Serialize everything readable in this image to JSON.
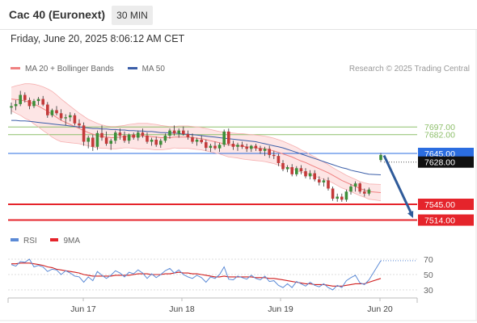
{
  "header": {
    "title": "Cac 40 (Euronext)",
    "timeframe": "30 MIN"
  },
  "subtitle": "Friday, June 20, 2025 8:06:12 AM CET",
  "credit": "Research © 2025 Trading Central",
  "colors": {
    "candle_up": "#3d8f3a",
    "candle_down": "#c43a3a",
    "ma50": "#3b5ea8",
    "bollinger": "#f08080",
    "bollinger_fill": "#fde2e2",
    "resistance_green": "#8dbf6a",
    "support_red": "#e5242b",
    "pivot_blue": "#2b6de0",
    "arrow": "#2f5b9a",
    "rsi": "#5b8ad6",
    "rsi_ma": "#d11f1f"
  },
  "legend_main": [
    {
      "label": "MA 20 + Bollinger Bands",
      "color": "#f08080"
    },
    {
      "label": "MA 50",
      "color": "#3b5ea8"
    }
  ],
  "legend_rsi": [
    {
      "label": "RSI",
      "color": "#5b8ad6"
    },
    {
      "label": "9MA",
      "color": "#e5242b"
    }
  ],
  "chart_data": [
    {
      "type": "candlestick",
      "title": "Cac 40 (Euronext)",
      "x_tick_labels": [
        "Jun 17",
        "Jun 18",
        "Jun 19",
        "Jun 20"
      ],
      "ylim": [
        7490,
        7800
      ],
      "ohlc": [
        [
          7735,
          7745,
          7722,
          7738
        ],
        [
          7738,
          7750,
          7730,
          7742
        ],
        [
          7742,
          7768,
          7738,
          7760
        ],
        [
          7760,
          7765,
          7745,
          7750
        ],
        [
          7750,
          7755,
          7732,
          7738
        ],
        [
          7738,
          7752,
          7734,
          7748
        ],
        [
          7748,
          7756,
          7740,
          7752
        ],
        [
          7752,
          7758,
          7738,
          7741
        ],
        [
          7741,
          7746,
          7715,
          7720
        ],
        [
          7720,
          7733,
          7716,
          7730
        ],
        [
          7730,
          7738,
          7720,
          7724
        ],
        [
          7724,
          7732,
          7710,
          7714
        ],
        [
          7714,
          7722,
          7700,
          7716
        ],
        [
          7716,
          7726,
          7708,
          7720
        ],
        [
          7720,
          7724,
          7700,
          7704
        ],
        [
          7704,
          7712,
          7695,
          7700
        ],
        [
          7700,
          7706,
          7660,
          7668
        ],
        [
          7668,
          7680,
          7655,
          7676
        ],
        [
          7676,
          7682,
          7650,
          7658
        ],
        [
          7658,
          7690,
          7652,
          7685
        ],
        [
          7685,
          7700,
          7670,
          7676
        ],
        [
          7676,
          7688,
          7660,
          7664
        ],
        [
          7664,
          7674,
          7652,
          7670
        ],
        [
          7670,
          7690,
          7664,
          7686
        ],
        [
          7686,
          7694,
          7672,
          7680
        ],
        [
          7680,
          7688,
          7666,
          7670
        ],
        [
          7670,
          7684,
          7664,
          7682
        ],
        [
          7682,
          7686,
          7672,
          7676
        ],
        [
          7676,
          7690,
          7670,
          7686
        ],
        [
          7686,
          7694,
          7676,
          7680
        ],
        [
          7680,
          7686,
          7664,
          7668
        ],
        [
          7668,
          7676,
          7660,
          7672
        ],
        [
          7672,
          7678,
          7658,
          7662
        ],
        [
          7662,
          7674,
          7656,
          7670
        ],
        [
          7670,
          7684,
          7666,
          7680
        ],
        [
          7680,
          7694,
          7674,
          7690
        ],
        [
          7690,
          7700,
          7680,
          7684
        ],
        [
          7684,
          7694,
          7676,
          7690
        ],
        [
          7690,
          7698,
          7680,
          7683
        ],
        [
          7683,
          7690,
          7672,
          7677
        ],
        [
          7677,
          7684,
          7664,
          7668
        ],
        [
          7668,
          7676,
          7660,
          7672
        ],
        [
          7672,
          7680,
          7664,
          7667
        ],
        [
          7667,
          7672,
          7650,
          7656
        ],
        [
          7656,
          7664,
          7648,
          7660
        ],
        [
          7660,
          7668,
          7652,
          7655
        ],
        [
          7655,
          7666,
          7648,
          7662
        ],
        [
          7662,
          7692,
          7658,
          7688
        ],
        [
          7688,
          7694,
          7660,
          7664
        ],
        [
          7664,
          7670,
          7652,
          7658
        ],
        [
          7658,
          7666,
          7650,
          7662
        ],
        [
          7662,
          7668,
          7654,
          7658
        ],
        [
          7658,
          7664,
          7648,
          7654
        ],
        [
          7654,
          7662,
          7648,
          7660
        ],
        [
          7660,
          7664,
          7650,
          7655
        ],
        [
          7655,
          7660,
          7644,
          7650
        ],
        [
          7650,
          7658,
          7640,
          7654
        ],
        [
          7654,
          7660,
          7636,
          7642
        ],
        [
          7642,
          7650,
          7634,
          7640
        ],
        [
          7640,
          7644,
          7620,
          7626
        ],
        [
          7626,
          7632,
          7610,
          7614
        ],
        [
          7614,
          7622,
          7608,
          7618
        ],
        [
          7618,
          7624,
          7600,
          7604
        ],
        [
          7604,
          7620,
          7600,
          7616
        ],
        [
          7616,
          7622,
          7604,
          7610
        ],
        [
          7610,
          7616,
          7596,
          7600
        ],
        [
          7600,
          7612,
          7594,
          7606
        ],
        [
          7606,
          7612,
          7590,
          7594
        ],
        [
          7594,
          7600,
          7582,
          7588
        ],
        [
          7588,
          7596,
          7580,
          7592
        ],
        [
          7592,
          7598,
          7572,
          7576
        ],
        [
          7576,
          7580,
          7552,
          7556
        ],
        [
          7556,
          7566,
          7550,
          7560
        ],
        [
          7560,
          7566,
          7550,
          7554
        ],
        [
          7554,
          7574,
          7550,
          7570
        ],
        [
          7570,
          7585,
          7564,
          7580
        ],
        [
          7580,
          7590,
          7570,
          7586
        ],
        [
          7586,
          7588,
          7566,
          7570
        ],
        [
          7570,
          7576,
          7560,
          7566
        ],
        [
          7566,
          7578,
          7562,
          7574
        ],
        [
          7632,
          7646,
          7628,
          7642
        ]
      ],
      "ma20": [
        7752,
        7751,
        7750,
        7748,
        7746,
        7742,
        7738,
        7733,
        7728,
        7722,
        7716,
        7710,
        7706,
        7702,
        7698,
        7694,
        7690,
        7686,
        7683,
        7680,
        7678,
        7677,
        7676,
        7676,
        7677,
        7678,
        7679,
        7679,
        7679,
        7679,
        7679,
        7678,
        7677,
        7676,
        7676,
        7676,
        7677,
        7677,
        7677,
        7677,
        7676,
        7675,
        7674,
        7672,
        7670,
        7668,
        7666,
        7664,
        7662,
        7661,
        7660,
        7659,
        7658,
        7657,
        7656,
        7655,
        7654,
        7652,
        7650,
        7647,
        7644,
        7641,
        7638,
        7634,
        7630,
        7627,
        7623,
        7619,
        7615,
        7611,
        7607,
        7602,
        7597,
        7592,
        7588,
        7584,
        7580,
        7576,
        7573,
        7570,
        7568
      ],
      "ma50": [
        7710,
        7710,
        7709,
        7709,
        7708,
        7707,
        7706,
        7705,
        7704,
        7703,
        7702,
        7701,
        7700,
        7699,
        7698,
        7697,
        7696,
        7695,
        7694,
        7694,
        7693,
        7693,
        7692,
        7692,
        7691,
        7691,
        7690,
        7690,
        7689,
        7689,
        7688,
        7688,
        7687,
        7686,
        7686,
        7685,
        7685,
        7684,
        7683,
        7683,
        7682,
        7681,
        7680,
        7679,
        7678,
        7677,
        7676,
        7675,
        7674,
        7673,
        7672,
        7671,
        7670,
        7669,
        7668,
        7666,
        7664,
        7662,
        7660,
        7658,
        7656,
        7653,
        7650,
        7647,
        7644,
        7641,
        7638,
        7635,
        7632,
        7629,
        7626,
        7623,
        7620,
        7617,
        7615,
        7612,
        7610,
        7608,
        7606,
        7604,
        7603
      ],
      "bb_upper": [
        7775,
        7778,
        7780,
        7782,
        7782,
        7781,
        7779,
        7776,
        7772,
        7767,
        7760,
        7752,
        7745,
        7738,
        7731,
        7724,
        7718,
        7712,
        7708,
        7704,
        7701,
        7699,
        7698,
        7698,
        7699,
        7700,
        7702,
        7703,
        7704,
        7704,
        7704,
        7703,
        7702,
        7700,
        7699,
        7698,
        7698,
        7699,
        7699,
        7699,
        7698,
        7697,
        7696,
        7694,
        7692,
        7690,
        7688,
        7687,
        7686,
        7685,
        7684,
        7684,
        7683,
        7682,
        7681,
        7680,
        7679,
        7677,
        7675,
        7672,
        7669,
        7665,
        7661,
        7657,
        7652,
        7648,
        7643,
        7638,
        7633,
        7628,
        7623,
        7617,
        7612,
        7607,
        7602,
        7598,
        7594,
        7590,
        7587,
        7585,
        7584
      ],
      "bb_lower": [
        7729,
        7724,
        7720,
        7714,
        7710,
        7703,
        7697,
        7690,
        7684,
        7677,
        7672,
        7668,
        7667,
        7666,
        7665,
        7664,
        7662,
        7660,
        7658,
        7656,
        7655,
        7655,
        7654,
        7654,
        7655,
        7656,
        7656,
        7655,
        7654,
        7654,
        7654,
        7653,
        7652,
        7652,
        7653,
        7654,
        7656,
        7655,
        7655,
        7655,
        7654,
        7653,
        7652,
        7650,
        7648,
        7646,
        7644,
        7641,
        7638,
        7637,
        7636,
        7634,
        7633,
        7632,
        7631,
        7630,
        7629,
        7627,
        7625,
        7622,
        7619,
        7617,
        7615,
        7611,
        7608,
        7606,
        7603,
        7600,
        7597,
        7594,
        7591,
        7587,
        7582,
        7577,
        7574,
        7570,
        7566,
        7562,
        7559,
        7555,
        7552
      ],
      "levels": [
        {
          "value": 7697.0,
          "label": "7697.00",
          "kind": "resistance"
        },
        {
          "value": 7682.0,
          "label": "7682.00",
          "kind": "resistance"
        },
        {
          "value": 7645.0,
          "label": "7645.00",
          "kind": "pivot"
        },
        {
          "value": 7628.0,
          "label": "7628.00",
          "kind": "last"
        },
        {
          "value": 7545.0,
          "label": "7545.00",
          "kind": "support"
        },
        {
          "value": 7514.0,
          "label": "7514.00",
          "kind": "support"
        }
      ],
      "forecast_arrow": {
        "from": 7641,
        "to": 7518
      }
    },
    {
      "type": "line",
      "title": "RSI",
      "ylim": [
        20,
        80
      ],
      "y_tick_labels": [
        "70",
        "50",
        "30"
      ],
      "y_ticks": [
        70,
        50,
        30
      ],
      "series": [
        {
          "name": "RSI",
          "values": [
            63,
            61,
            67,
            66,
            70,
            60,
            62,
            60,
            54,
            57,
            56,
            50,
            55,
            52,
            48,
            47,
            40,
            47,
            42,
            54,
            49,
            45,
            49,
            55,
            52,
            47,
            53,
            51,
            56,
            52,
            45,
            51,
            46,
            50,
            55,
            58,
            52,
            56,
            50,
            47,
            45,
            49,
            46,
            40,
            47,
            45,
            50,
            60,
            44,
            43,
            48,
            46,
            44,
            49,
            45,
            43,
            48,
            41,
            42,
            36,
            33,
            38,
            33,
            41,
            38,
            35,
            40,
            36,
            34,
            38,
            33,
            30,
            36,
            33,
            42,
            46,
            49,
            39,
            37,
            43,
            68
          ]
        },
        {
          "name": "9MA",
          "values": [
            64,
            64,
            65,
            65,
            65,
            64,
            63,
            62,
            60,
            59,
            57,
            56,
            55,
            54,
            53,
            52,
            50,
            49,
            48,
            48,
            48,
            48,
            48,
            49,
            49,
            49,
            49,
            50,
            51,
            51,
            51,
            50,
            50,
            50,
            51,
            51,
            52,
            53,
            52,
            52,
            51,
            51,
            50,
            49,
            48,
            47,
            47,
            48,
            47,
            47,
            47,
            47,
            47,
            47,
            46,
            46,
            46,
            45,
            45,
            44,
            43,
            42,
            41,
            40,
            39,
            38,
            38,
            37,
            37,
            37,
            36,
            35,
            35,
            35,
            36,
            37,
            38,
            38,
            38,
            40,
            45
          ]
        }
      ]
    }
  ]
}
